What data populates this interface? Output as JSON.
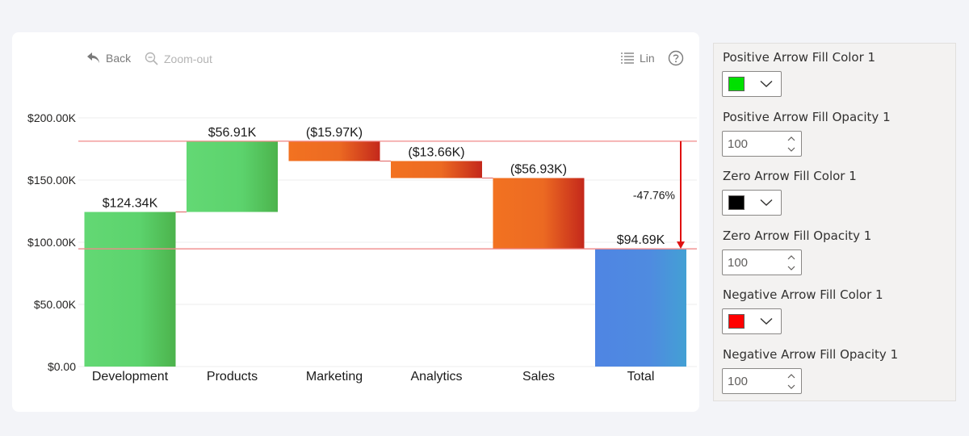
{
  "toolbar": {
    "back_label": "Back",
    "zoomout_label": "Zoom-out",
    "scale_label": "Lin"
  },
  "chart_data": {
    "type": "waterfall",
    "categories": [
      "Development",
      "Products",
      "Marketing",
      "Analytics",
      "Sales",
      "Total"
    ],
    "values": [
      124.34,
      56.91,
      -15.97,
      -13.66,
      -56.93,
      94.69
    ],
    "value_labels": [
      "$124.34K",
      "$56.91K",
      "($15.97K)",
      "($13.66K)",
      "($56.93K)",
      "$94.69K"
    ],
    "y_ticks": [
      0,
      50,
      100,
      150,
      200
    ],
    "y_tick_labels": [
      "$0.00",
      "$50.00K",
      "$100.00K",
      "$150.00K",
      "$200.00K"
    ],
    "ylim": [
      0,
      200
    ],
    "grid": true,
    "variance_label": "-47.76%",
    "reference_values": [
      181.25,
      94.69
    ],
    "colors": {
      "positive": "#5fd46e",
      "negative": "#ef6a22",
      "total": "#4f88e0",
      "reference_line": "#f08a8a",
      "variance_arrow": "#e01010"
    }
  },
  "panel": {
    "positive_color_label": "Positive Arrow Fill Color 1",
    "positive_color": "#00e000",
    "positive_opacity_label": "Positive Arrow Fill Opacity 1",
    "positive_opacity": "100",
    "zero_color_label": "Zero Arrow Fill Color 1",
    "zero_color": "#000000",
    "zero_opacity_label": "Zero Arrow Fill Opacity 1",
    "zero_opacity": "100",
    "negative_color_label": "Negative Arrow Fill Color 1",
    "negative_color": "#ff0000",
    "negative_opacity_label": "Negative Arrow Fill Opacity 1",
    "negative_opacity": "100"
  }
}
